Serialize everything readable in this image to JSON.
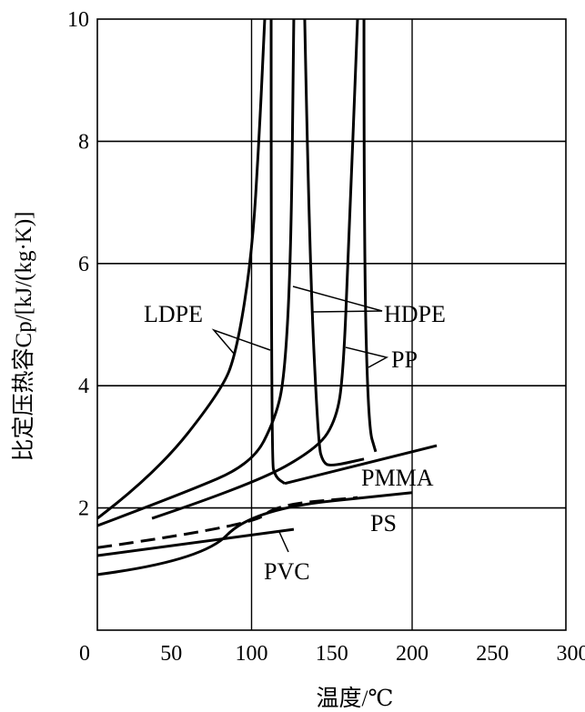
{
  "chart_data": {
    "type": "line",
    "title": "",
    "xlabel": "温度/℃",
    "ylabel": "比定压热容Cp/[kJ/(kg·K)]",
    "xlim": [
      0,
      300
    ],
    "ylim": [
      0,
      10
    ],
    "x_ticks": [
      "0",
      "50",
      "100",
      "150",
      "200",
      "250",
      "300"
    ],
    "y_ticks": [
      "2",
      "4",
      "6",
      "8",
      "10"
    ],
    "grid": true,
    "series": [
      {
        "name": "LDPE",
        "style": "solid",
        "points": [
          [
            4,
            1.83
          ],
          [
            39.7,
            2.54
          ],
          [
            81,
            3.91
          ],
          [
            90.7,
            4.55
          ],
          [
            100.3,
            6.15
          ],
          [
            104.8,
            8.08
          ],
          [
            108.2,
            10
          ]
        ]
      },
      {
        "name": "LDPE",
        "style": "solid",
        "points": [
          [
            112.2,
            10
          ],
          [
            112.2,
            2.77
          ],
          [
            115,
            2.5
          ],
          [
            120.7,
            2.4
          ]
        ]
      },
      {
        "name": "HDPE",
        "style": "solid",
        "points": [
          [
            4,
            1.71
          ],
          [
            56.7,
            2.23
          ],
          [
            100.3,
            2.72
          ],
          [
            115,
            3.47
          ],
          [
            120.7,
            4.17
          ],
          [
            124.6,
            6.15
          ],
          [
            126.3,
            10
          ]
        ]
      },
      {
        "name": "HDPE",
        "style": "solid",
        "points": [
          [
            133.1,
            10
          ],
          [
            136,
            6.15
          ],
          [
            141.6,
            3.02
          ],
          [
            144.5,
            2.75
          ],
          [
            149,
            2.68
          ],
          [
            170,
            2.8
          ]
        ]
      },
      {
        "name": "PP",
        "style": "solid",
        "points": [
          [
            38,
            1.83
          ],
          [
            100.3,
            2.38
          ],
          [
            141.6,
            2.98
          ],
          [
            153,
            3.47
          ],
          [
            157,
            4.17
          ],
          [
            160.3,
            6.15
          ],
          [
            166,
            10
          ]
        ]
      },
      {
        "name": "PP",
        "style": "solid",
        "points": [
          [
            170,
            10
          ],
          [
            170,
            6.15
          ],
          [
            172.8,
            3.32
          ],
          [
            177.3,
            2.92
          ]
        ]
      },
      {
        "name": "PMMA",
        "style": "solid",
        "points": [
          [
            120.7,
            2.4
          ],
          [
            215.3,
            3.02
          ]
        ]
      },
      {
        "name": "dashed",
        "style": "dashed",
        "points": [
          [
            4,
            1.35
          ],
          [
            100.3,
            1.71
          ],
          [
            115,
            2.05
          ],
          [
            166,
            2.17
          ]
        ]
      },
      {
        "name": "PVC",
        "style": "solid",
        "points": [
          [
            4,
            1.22
          ],
          [
            126.3,
            1.65
          ]
        ]
      },
      {
        "name": "PS",
        "style": "solid",
        "points": [
          [
            4,
            0.91
          ],
          [
            69,
            1.13
          ],
          [
            100.3,
            1.98
          ],
          [
            200,
            2.25
          ]
        ]
      }
    ],
    "annotations": {
      "LDPE": "LDPE",
      "HDPE": "HDPE",
      "PP": "PP",
      "PMMA": "PMMA",
      "PS": "PS",
      "PVC": "PVC"
    }
  }
}
